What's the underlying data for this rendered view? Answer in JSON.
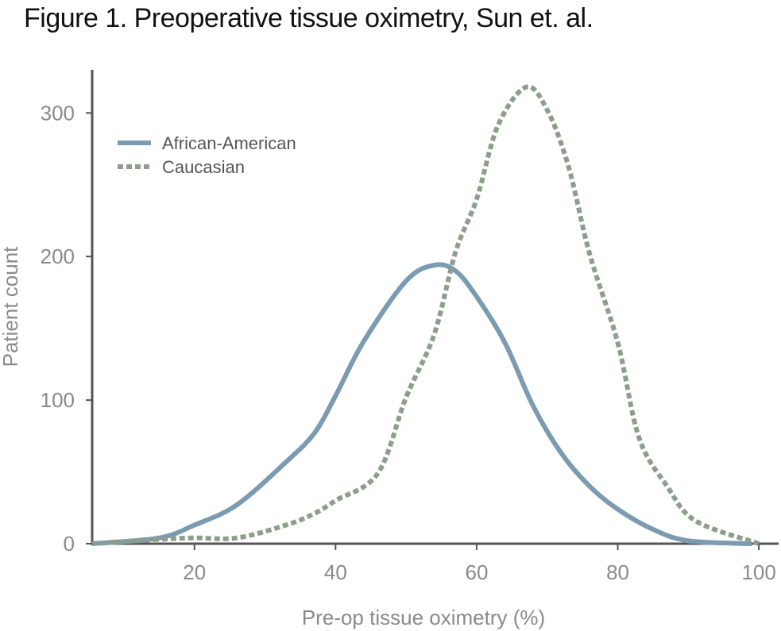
{
  "chart_data": {
    "type": "line",
    "title": "Figure 1. Preoperative tissue oximetry, Sun et. al.",
    "xlabel": "Pre-op tissue oximetry (%)",
    "ylabel": "Patient count",
    "xlim": [
      5.5,
      102.8
    ],
    "ylim": [
      0,
      330
    ],
    "xticks": [
      20,
      40,
      60,
      80,
      100
    ],
    "yticks": [
      0,
      100,
      200,
      300
    ],
    "grid": false,
    "legend_position": "top-left",
    "series": [
      {
        "name": "African-American",
        "color": "#7b9bb1",
        "style": "solid",
        "x": [
          5.5,
          15,
          20,
          26,
          33,
          37,
          40,
          44,
          50,
          54,
          57,
          60,
          64,
          68,
          72,
          76,
          80,
          85,
          90,
          99
        ],
        "y": [
          0,
          4,
          13,
          27,
          57,
          77,
          103,
          141,
          183,
          194,
          190,
          172,
          140,
          96,
          63,
          40,
          24,
          10,
          2,
          0
        ]
      },
      {
        "name": "Caucasian",
        "color": "#8d9e8c",
        "style": "dotted",
        "x": [
          5.5,
          15,
          20,
          26,
          33,
          37,
          40,
          46,
          50,
          54,
          57,
          60,
          63,
          67,
          70,
          73,
          76,
          80,
          83,
          87,
          91,
          100
        ],
        "y": [
          0,
          3,
          4,
          4,
          13,
          21,
          30,
          49,
          102,
          146,
          203,
          240,
          291,
          318,
          302,
          263,
          202,
          140,
          74,
          40,
          16,
          0
        ]
      }
    ]
  }
}
